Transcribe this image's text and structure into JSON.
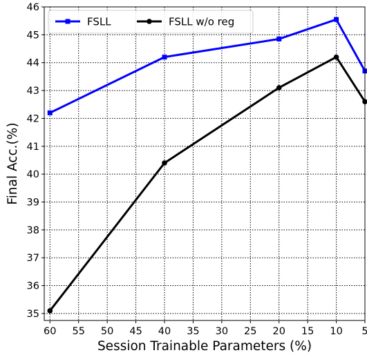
{
  "chart_data": {
    "type": "line",
    "title": "",
    "xlabel": "Session Trainable Parameters (%)",
    "ylabel": "Final Acc.(%)",
    "x_reversed": true,
    "xlim": [
      61,
      5
    ],
    "ylim": [
      34.75,
      46
    ],
    "x_ticks": [
      60,
      55,
      50,
      45,
      40,
      35,
      30,
      25,
      20,
      15,
      10,
      5
    ],
    "y_ticks": [
      35,
      36,
      37,
      38,
      39,
      40,
      41,
      42,
      43,
      44,
      45,
      46
    ],
    "grid": true,
    "legend_position": "top-left",
    "series": [
      {
        "name": "FSLL",
        "color": "#0000ff",
        "marker": "square",
        "x": [
          60,
          40,
          20,
          10,
          5
        ],
        "y": [
          42.2,
          44.2,
          44.85,
          45.55,
          43.7
        ]
      },
      {
        "name": "FSLL w/o reg",
        "color": "#000000",
        "marker": "circle",
        "x": [
          60,
          40,
          20,
          10,
          5
        ],
        "y": [
          35.1,
          40.4,
          43.1,
          44.2,
          42.6
        ]
      }
    ]
  }
}
